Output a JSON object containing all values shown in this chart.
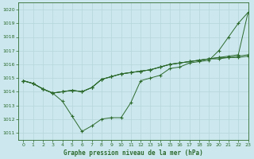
{
  "title": "Graphe pression niveau de la mer (hPa)",
  "bg_color": "#cce8ee",
  "grid_color": "#b8d8de",
  "line_color": "#2d6a2d",
  "marker_color": "#2d6a2d",
  "xlim": [
    -0.5,
    23
  ],
  "ylim": [
    1010.5,
    1020.5
  ],
  "yticks": [
    1011,
    1012,
    1013,
    1014,
    1015,
    1016,
    1017,
    1018,
    1019,
    1020
  ],
  "xticks": [
    0,
    1,
    2,
    3,
    4,
    5,
    6,
    7,
    8,
    9,
    10,
    11,
    12,
    13,
    14,
    15,
    16,
    17,
    18,
    19,
    20,
    21,
    22,
    23
  ],
  "lines": [
    {
      "x": [
        0,
        1,
        2,
        3,
        4,
        5,
        6,
        7,
        8,
        9,
        10,
        11,
        12,
        13,
        14,
        15,
        16,
        17,
        18,
        19,
        20,
        21,
        22,
        23
      ],
      "y": [
        1014.8,
        1014.6,
        1014.2,
        1013.9,
        1013.3,
        1012.2,
        1011.1,
        1011.5,
        1012.0,
        1012.1,
        1012.1,
        1013.2,
        1014.8,
        1015.0,
        1015.2,
        1015.7,
        1015.8,
        1016.1,
        1016.2,
        1016.3,
        1017.0,
        1018.0,
        1019.0,
        1019.8
      ]
    },
    {
      "x": [
        0,
        1,
        2,
        3,
        4,
        5,
        6,
        7,
        8,
        9,
        10,
        11,
        12,
        13,
        14,
        15,
        16,
        17,
        18,
        19,
        20,
        21,
        22,
        23
      ],
      "y": [
        1014.8,
        1014.6,
        1014.2,
        1013.9,
        1014.0,
        1014.1,
        1014.0,
        1014.3,
        1014.9,
        1015.1,
        1015.3,
        1015.4,
        1015.5,
        1015.6,
        1015.8,
        1016.0,
        1016.1,
        1016.2,
        1016.3,
        1016.4,
        1016.5,
        1016.6,
        1016.7,
        1019.8
      ]
    },
    {
      "x": [
        0,
        1,
        2,
        3,
        4,
        5,
        6,
        7,
        8,
        9,
        10,
        11,
        12,
        13,
        14,
        15,
        16,
        17,
        18,
        19,
        20,
        21,
        22,
        23
      ],
      "y": [
        1014.8,
        1014.6,
        1014.2,
        1013.9,
        1014.0,
        1014.1,
        1014.0,
        1014.3,
        1014.9,
        1015.1,
        1015.3,
        1015.4,
        1015.5,
        1015.6,
        1015.8,
        1016.0,
        1016.1,
        1016.2,
        1016.3,
        1016.4,
        1016.5,
        1016.5,
        1016.6,
        1016.7
      ]
    },
    {
      "x": [
        0,
        1,
        2,
        3,
        4,
        5,
        6,
        7,
        8,
        9,
        10,
        11,
        12,
        13,
        14,
        15,
        16,
        17,
        18,
        19,
        20,
        21,
        22,
        23
      ],
      "y": [
        1014.8,
        1014.6,
        1014.2,
        1013.9,
        1014.0,
        1014.1,
        1014.0,
        1014.3,
        1014.9,
        1015.1,
        1015.3,
        1015.4,
        1015.5,
        1015.6,
        1015.8,
        1016.0,
        1016.1,
        1016.2,
        1016.3,
        1016.4,
        1016.4,
        1016.5,
        1016.5,
        1016.6
      ]
    }
  ],
  "figsize": [
    3.2,
    2.0
  ],
  "dpi": 100
}
